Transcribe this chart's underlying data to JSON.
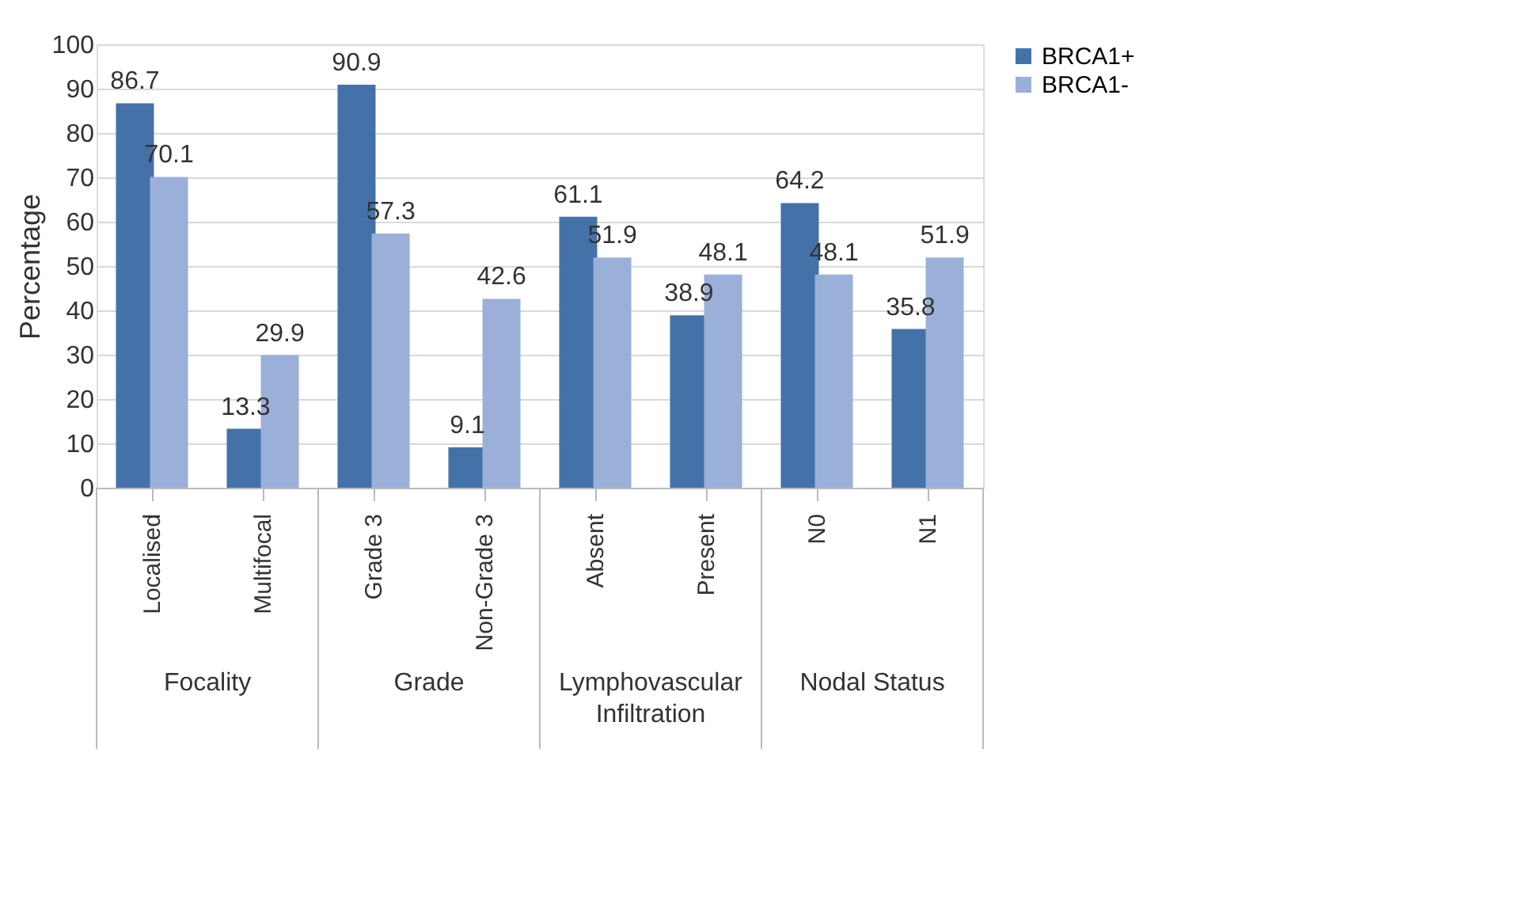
{
  "chart_data": {
    "type": "bar",
    "ylabel": "Percentage",
    "categories": [
      "Localised",
      "Multifocal",
      "Grade 3",
      "Non-Grade 3",
      "Absent",
      "Present",
      "N0",
      "N1"
    ],
    "annotations": [
      "Focality",
      "Grade",
      "Lymphovascular Infiltration",
      "Nodal Status"
    ],
    "series": [
      {
        "name": "BRCA1+",
        "color": "#4472a8",
        "values": [
          86.7,
          13.3,
          90.9,
          9.1,
          61.1,
          38.9,
          64.2,
          35.8
        ]
      },
      {
        "name": "BRCA1-",
        "color": "#9bb0d8",
        "values": [
          70.1,
          29.9,
          57.3,
          42.6,
          51.9,
          48.1,
          48.1,
          51.9
        ]
      }
    ],
    "ylim": [
      0,
      100
    ],
    "yticks": [
      0,
      10,
      20,
      30,
      40,
      50,
      60,
      70,
      80,
      90,
      100
    ],
    "grid": "y",
    "legend": "right",
    "data_labels": true
  }
}
